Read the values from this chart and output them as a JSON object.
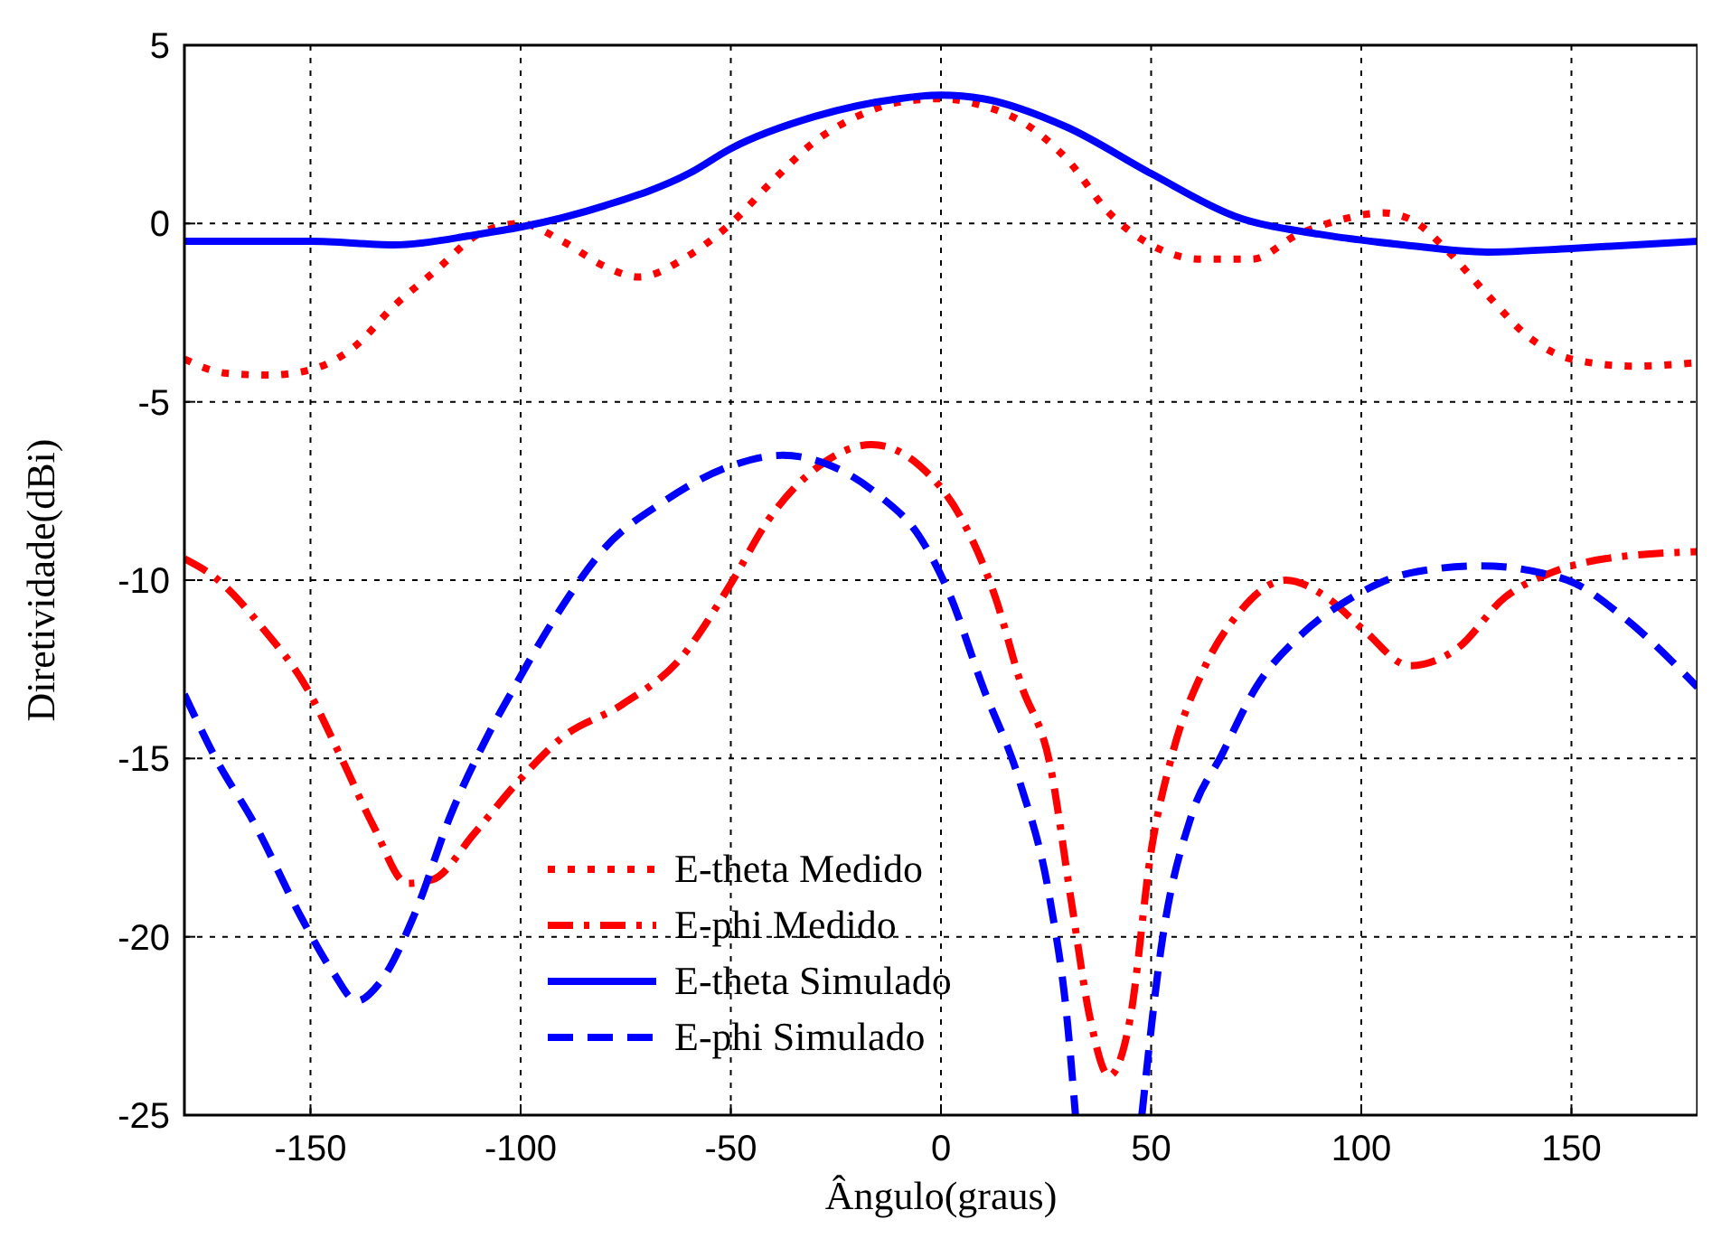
{
  "chart_data": {
    "type": "line",
    "xlabel": "Ângulo(graus)",
    "ylabel": "Diretividade(dBi)",
    "xlim": [
      -180,
      180
    ],
    "ylim": [
      -25,
      5
    ],
    "xticks": [
      -150,
      -100,
      -50,
      0,
      50,
      100,
      150
    ],
    "yticks": [
      -25,
      -20,
      -15,
      -10,
      -5,
      0,
      5
    ],
    "grid": true,
    "legend": "bottom",
    "marker": "none",
    "series": [
      {
        "name": "E-theta Medido",
        "color": "#ff0000",
        "line_style": "dotted",
        "x": [
          -180,
          -170,
          -160,
          -150,
          -140,
          -130,
          -120,
          -110,
          -100,
          -90,
          -80,
          -72,
          -60,
          -50,
          -40,
          -30,
          -20,
          -10,
          0,
          10,
          20,
          30,
          40,
          50,
          62,
          74,
          85,
          95,
          105,
          112,
          120,
          130,
          140,
          150,
          165,
          180
        ],
        "values": [
          -3.8,
          -4.2,
          -4.25,
          -4.1,
          -3.5,
          -2.3,
          -1.3,
          -0.3,
          0,
          -0.5,
          -1.2,
          -1.5,
          -0.9,
          0,
          1.2,
          2.3,
          3,
          3.4,
          3.5,
          3.3,
          2.8,
          1.8,
          0.3,
          -0.6,
          -1,
          -1,
          -0.3,
          0.1,
          0.3,
          0.1,
          -0.7,
          -2,
          -3.2,
          -3.8,
          -4,
          -3.9
        ]
      },
      {
        "name": "E-phi Medido",
        "color": "#ff0000",
        "line_style": "dashdot",
        "x": [
          -180,
          -173,
          -161,
          -151,
          -143,
          -135,
          -127,
          -121,
          -111,
          -101,
          -90,
          -76,
          -62,
          -50,
          -41,
          -29,
          -16.5,
          -5,
          5,
          13,
          19,
          26,
          31,
          35.5,
          40,
          45,
          50,
          55,
          62.5,
          71,
          82,
          92,
          100.6,
          111.6,
          123,
          134,
          145,
          158,
          180
        ],
        "values": [
          -9.4,
          -9.9,
          -11.4,
          -13,
          -14.9,
          -16.9,
          -18.5,
          -18.4,
          -17.1,
          -15.7,
          -14.4,
          -13.5,
          -12.2,
          -10.1,
          -8.3,
          -6.8,
          -6.2,
          -6.8,
          -8.3,
          -10.5,
          -12.9,
          -15.2,
          -19,
          -22.3,
          -23.9,
          -22.3,
          -17.6,
          -14.9,
          -12.5,
          -10.9,
          -10,
          -10.5,
          -11.4,
          -12.4,
          -11.9,
          -10.5,
          -9.8,
          -9.4,
          -9.2
        ]
      },
      {
        "name": "E-theta Simulado",
        "color": "#0000ff",
        "line_style": "solid",
        "x": [
          -180,
          -150,
          -130,
          -110,
          -100,
          -80,
          -60,
          -50,
          -30,
          -10,
          0,
          10,
          30,
          50,
          70,
          90,
          110,
          130,
          150,
          180
        ],
        "values": [
          -0.5,
          -0.5,
          -0.6,
          -0.3,
          -0.1,
          0.5,
          1.4,
          2.1,
          3,
          3.5,
          3.6,
          3.5,
          2.7,
          1.4,
          0.2,
          -0.3,
          -0.6,
          -0.8,
          -0.7,
          -0.5
        ]
      },
      {
        "name": "E-phi Simulado",
        "color": "#0000ff",
        "line_style": "dashed",
        "x": [
          -180,
          -173,
          -163,
          -152,
          -144.6,
          -139,
          -133.6,
          -125,
          -116.7,
          -108,
          -101,
          -91,
          -80,
          -66,
          -50,
          -37.6,
          -26,
          -15,
          -5,
          1.7,
          10,
          18.6,
          26,
          30,
          32,
          40,
          47.8,
          52.4,
          59.6,
          66.8,
          75,
          86,
          97.6,
          111.6,
          128.5,
          143,
          151,
          162,
          180
        ],
        "values": [
          -13.2,
          -14.9,
          -16.9,
          -19.5,
          -21,
          -21.8,
          -21.3,
          -19.3,
          -16.6,
          -14.4,
          -12.9,
          -10.9,
          -9.1,
          -7.8,
          -6.8,
          -6.5,
          -6.8,
          -7.6,
          -8.8,
          -10.3,
          -13,
          -15.6,
          -19,
          -22.3,
          -25,
          null,
          -25,
          -20.3,
          -16.6,
          -14.9,
          -13,
          -11.5,
          -10.5,
          -9.8,
          -9.6,
          -9.8,
          -10.1,
          -11,
          -13
        ]
      }
    ]
  }
}
